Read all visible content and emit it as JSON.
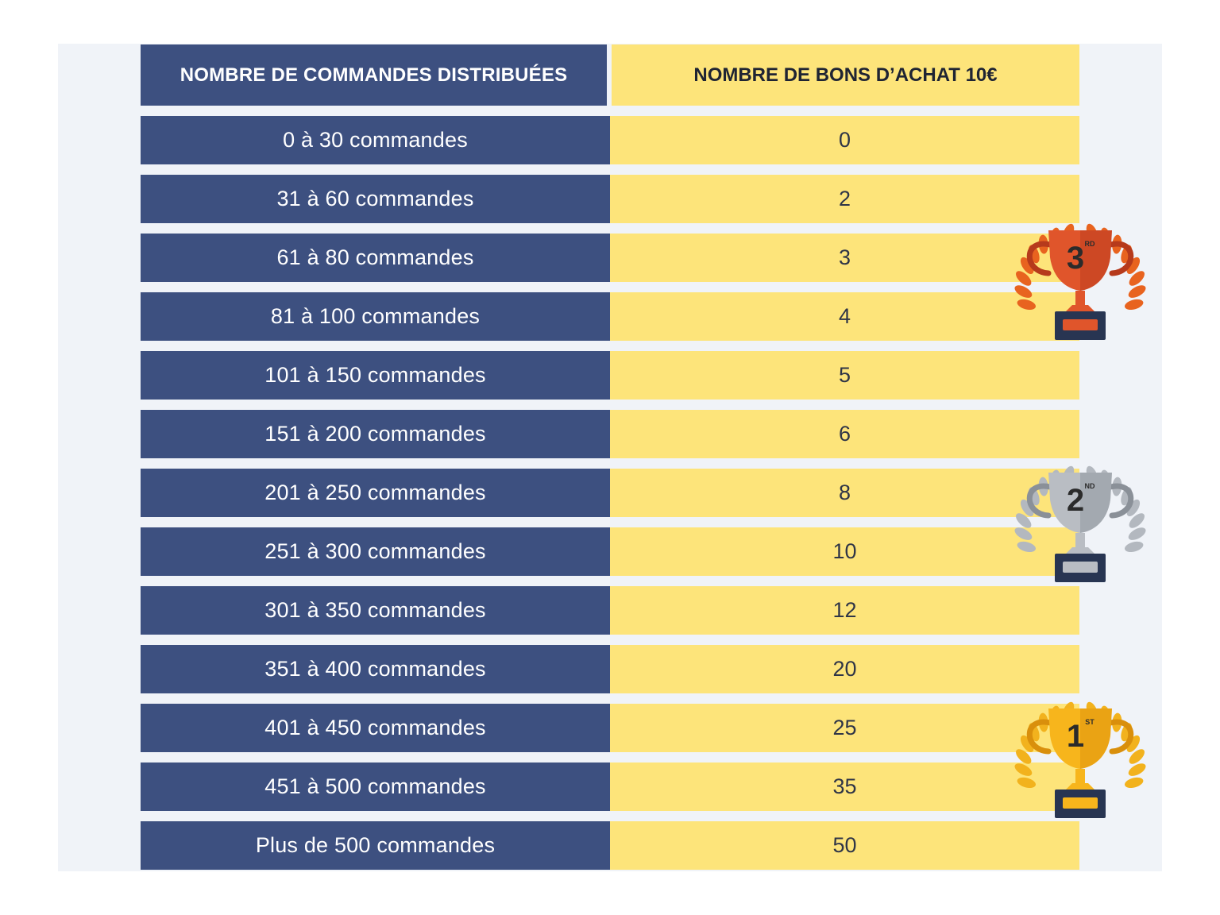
{
  "table": {
    "header": {
      "left": "NOMBRE DE COMMANDES DISTRIBUÉES",
      "right": "NOMBRE DE BONS D’ACHAT 10€"
    },
    "rows": [
      {
        "orders": "0 à 30 commandes",
        "vouchers": "0"
      },
      {
        "orders": "31 à 60 commandes",
        "vouchers": "2"
      },
      {
        "orders": "61 à 80 commandes",
        "vouchers": "3"
      },
      {
        "orders": "81 à 100 commandes",
        "vouchers": "4"
      },
      {
        "orders": "101 à 150 commandes",
        "vouchers": "5"
      },
      {
        "orders": "151 à 200 commandes",
        "vouchers": "6"
      },
      {
        "orders": "201 à 250 commandes",
        "vouchers": "8"
      },
      {
        "orders": "251 à 300 commandes",
        "vouchers": "10"
      },
      {
        "orders": "301 à 350 commandes",
        "vouchers": "12"
      },
      {
        "orders": "351 à 400 commandes",
        "vouchers": "20"
      },
      {
        "orders": "401 à 450 commandes",
        "vouchers": "25"
      },
      {
        "orders": "451 à 500 commandes",
        "vouchers": "35"
      },
      {
        "orders": "Plus de 500 commandes",
        "vouchers": "50"
      }
    ]
  },
  "trophies": {
    "third": {
      "numeral": "3",
      "suffix": "RD",
      "cup": "#e0552b",
      "cup_dark": "#b63a1c",
      "laurel": "#e8631f"
    },
    "second": {
      "numeral": "2",
      "suffix": "ND",
      "cup": "#b9bdc3",
      "cup_dark": "#8a9098",
      "laurel": "#b3b8bf"
    },
    "first": {
      "numeral": "1",
      "suffix": "ST",
      "cup": "#f7b51c",
      "cup_dark": "#d98f0c",
      "laurel": "#f2b21d"
    }
  },
  "colors": {
    "navy": "#3d5080",
    "yellow": "#fde47a",
    "base": "#283552"
  }
}
